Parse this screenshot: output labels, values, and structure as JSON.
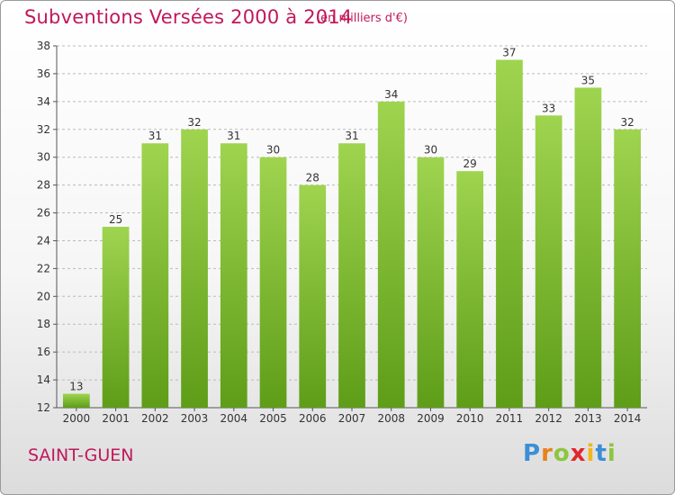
{
  "header": {
    "title": "Subventions Versées 2000 à 2014",
    "unit": "(en milliers d'€)"
  },
  "footer": {
    "commune": "SAINT-GUEN",
    "logo": {
      "letters": [
        "P",
        "r",
        "o",
        "x",
        "i",
        "t",
        "i"
      ],
      "colors": [
        "#3a8fd6",
        "#e8821c",
        "#8cc63e",
        "#e2262e",
        "#f1b81c",
        "#3a8fd6",
        "#8cc63e"
      ]
    }
  },
  "colors": {
    "title": "#c0185a",
    "bar_light": "#9fd44f",
    "bar_dark": "#5e9d18",
    "grid": "#bbbbbb"
  },
  "chart_data": {
    "type": "bar",
    "title": "Subventions Versées 2000 à 2014",
    "subtitle": "(en milliers d'€)",
    "categories": [
      "2000",
      "2001",
      "2002",
      "2003",
      "2004",
      "2005",
      "2006",
      "2007",
      "2008",
      "2009",
      "2010",
      "2011",
      "2012",
      "2013",
      "2014"
    ],
    "values": [
      13,
      25,
      31,
      32,
      31,
      30,
      28,
      31,
      34,
      30,
      29,
      37,
      33,
      35,
      32
    ],
    "ylim": [
      12,
      38
    ],
    "yticks": [
      12,
      14,
      16,
      18,
      20,
      22,
      24,
      26,
      28,
      30,
      32,
      34,
      36,
      38
    ],
    "grid": "horizontal dashed",
    "data_labels": true
  }
}
